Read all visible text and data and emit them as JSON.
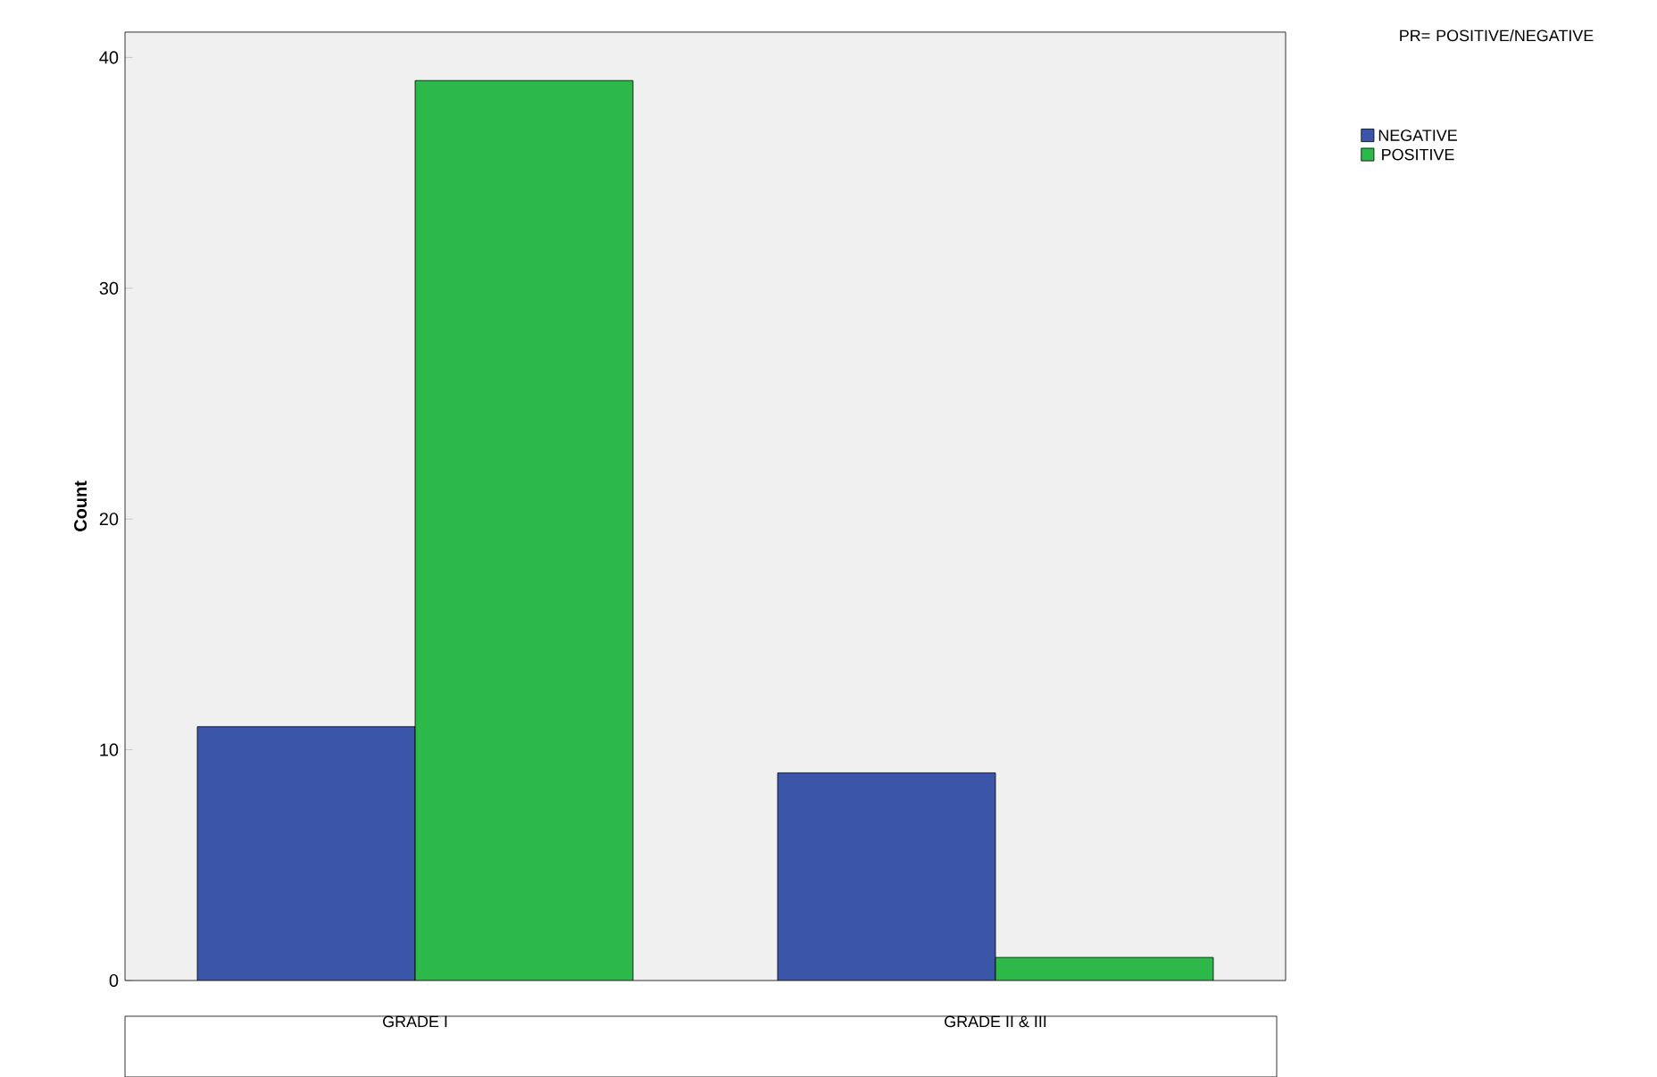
{
  "chart_data": {
    "type": "bar",
    "ylabel": "Count",
    "legend_title": "PR= POSITIVE/NEGATIVE",
    "categories": [
      "GRADE I",
      "GRADE II & III"
    ],
    "series": [
      {
        "name": "NEGATIVE",
        "color": "#3b56a8",
        "values": [
          11,
          9
        ]
      },
      {
        "name": "POSITIVE",
        "color": "#2db84a",
        "values": [
          39,
          1
        ]
      }
    ],
    "ylim": [
      0,
      41.1
    ],
    "yticks": [
      0,
      10,
      20,
      30,
      40
    ],
    "legend": "right"
  }
}
